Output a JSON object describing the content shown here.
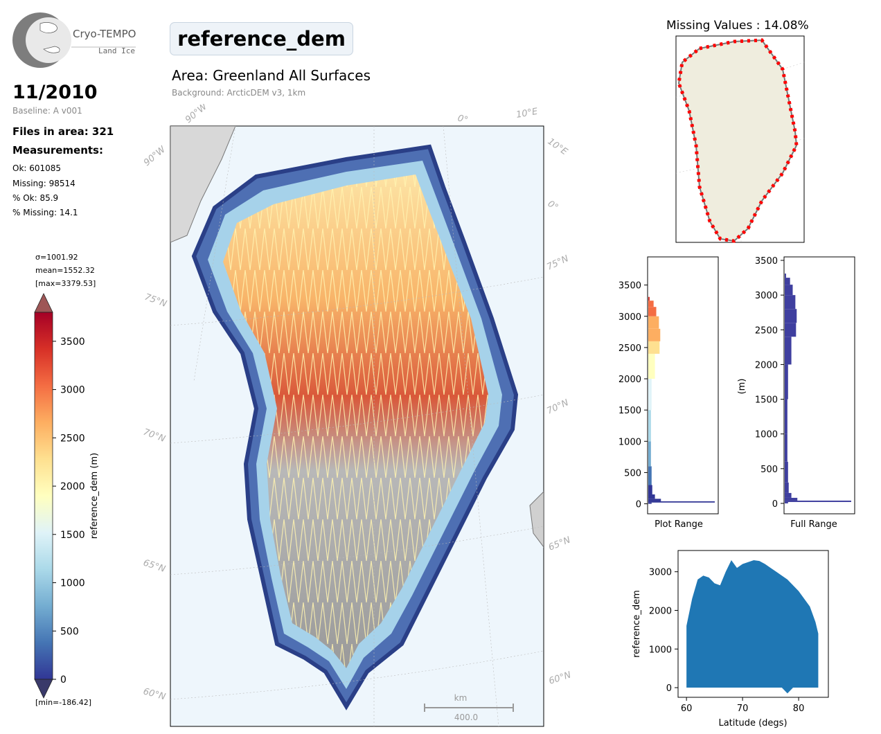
{
  "logo": {
    "name": "Cryo-TEMPO",
    "sub": "Land Ice"
  },
  "header": {
    "date": "11/2010",
    "baseline": "Baseline: A v001",
    "files": "Files in area: 321",
    "measurements_heading": "Measurements:",
    "stats": [
      "Ok: 601085",
      "Missing: 98514",
      "% Ok: 85.9",
      "% Missing: 14.1"
    ]
  },
  "map": {
    "title": "reference_dem",
    "area": "Area: Greenland All Surfaces",
    "background": "Background: ArcticDEM v3, 1km",
    "lat_labels_left": [
      "75°N",
      "70°N",
      "65°N",
      "60°N"
    ],
    "lat_labels_right": [
      "75°N",
      "70°N",
      "65°N",
      "60°N"
    ],
    "lon_labels_top": [
      "90°W",
      "0°",
      "10°E"
    ],
    "lon_labels_left": [
      "90°W"
    ],
    "lon_labels_right": [
      "10°E",
      "0°"
    ],
    "scalebar_unit": "km",
    "scalebar_value": "400.0"
  },
  "colorbar": {
    "sigma": "σ=1001.92",
    "mean": "mean=1552.32",
    "max": "[max=3379.53]",
    "min": "[min=-186.42]",
    "label": "reference_dem (m)",
    "ticks": [
      "0",
      "500",
      "1000",
      "1500",
      "2000",
      "2500",
      "3000",
      "3500"
    ],
    "colors": [
      "#313695",
      "#4575b4",
      "#74add1",
      "#abd9e9",
      "#e0f3f8",
      "#ffffbf",
      "#fee090",
      "#fdae61",
      "#f46d43",
      "#d73027",
      "#a50026"
    ],
    "over_color": "#9e5656",
    "under_color": "#3a3a6a"
  },
  "missing": {
    "title": "Missing Values : 14.08%",
    "land_color": "#efedde",
    "mark_color": "#ff0000"
  },
  "hist_plot": {
    "xlabel": "Plot Range",
    "yticks": [
      "0",
      "500",
      "1000",
      "1500",
      "2000",
      "2500",
      "3000",
      "3500"
    ]
  },
  "hist_full": {
    "xlabel": "Full Range",
    "ylabel": "(m)",
    "yticks": [
      "0",
      "500",
      "1000",
      "1500",
      "2000",
      "2500",
      "3000",
      "3500"
    ],
    "color": "#3f3f9f"
  },
  "chart_data": [
    {
      "type": "area",
      "title": "Plot Range",
      "xlabel": "Plot Range",
      "ylabel": "",
      "ylim": [
        -160,
        3950
      ],
      "series": [
        {
          "elevation": [
            0,
            20,
            40,
            80,
            150,
            300,
            600,
            1000,
            1500,
            2000,
            2400,
            2600,
            2800,
            3000,
            3150,
            3250
          ],
          "relative_count": [
            0.05,
            1.0,
            0.19,
            0.1,
            0.06,
            0.05,
            0.04,
            0.04,
            0.05,
            0.1,
            0.17,
            0.18,
            0.16,
            0.12,
            0.08,
            0.02
          ]
        }
      ]
    },
    {
      "type": "area",
      "title": "Full Range",
      "xlabel": "Full Range",
      "ylabel": "(m)",
      "ylim": [
        -150,
        3550
      ],
      "series": [
        {
          "elevation": [
            0,
            20,
            40,
            80,
            150,
            300,
            600,
            1000,
            1500,
            2000,
            2400,
            2600,
            2800,
            3000,
            3150,
            3250
          ],
          "relative_count": [
            0.05,
            1.0,
            0.19,
            0.1,
            0.06,
            0.05,
            0.04,
            0.04,
            0.05,
            0.1,
            0.17,
            0.18,
            0.16,
            0.12,
            0.08,
            0.02
          ]
        }
      ]
    },
    {
      "type": "scatter",
      "xlabel": "Latitude (degs)",
      "ylabel": "reference_dem",
      "xlim": [
        58.5,
        85.3
      ],
      "ylim": [
        -250,
        3550
      ],
      "xticks": [
        60,
        70,
        80
      ],
      "yticks": [
        0,
        1000,
        2000,
        3000
      ],
      "color": "#1f77b4",
      "envelope_lat": [
        60,
        61,
        62,
        63,
        64,
        65,
        66,
        67,
        68,
        69,
        70,
        71,
        72,
        73,
        74,
        75,
        76,
        77,
        78,
        79,
        80,
        81,
        82,
        83,
        83.5
      ],
      "envelope_max": [
        1600,
        2300,
        2800,
        2900,
        2850,
        2700,
        2650,
        3000,
        3300,
        3100,
        3200,
        3250,
        3300,
        3280,
        3200,
        3100,
        3000,
        2900,
        2800,
        2650,
        2500,
        2300,
        2100,
        1700,
        1400
      ],
      "envelope_min": [
        0,
        0,
        0,
        0,
        0,
        0,
        0,
        0,
        0,
        0,
        0,
        0,
        0,
        0,
        0,
        0,
        0,
        0,
        -150,
        0,
        0,
        0,
        0,
        0,
        0
      ]
    }
  ]
}
